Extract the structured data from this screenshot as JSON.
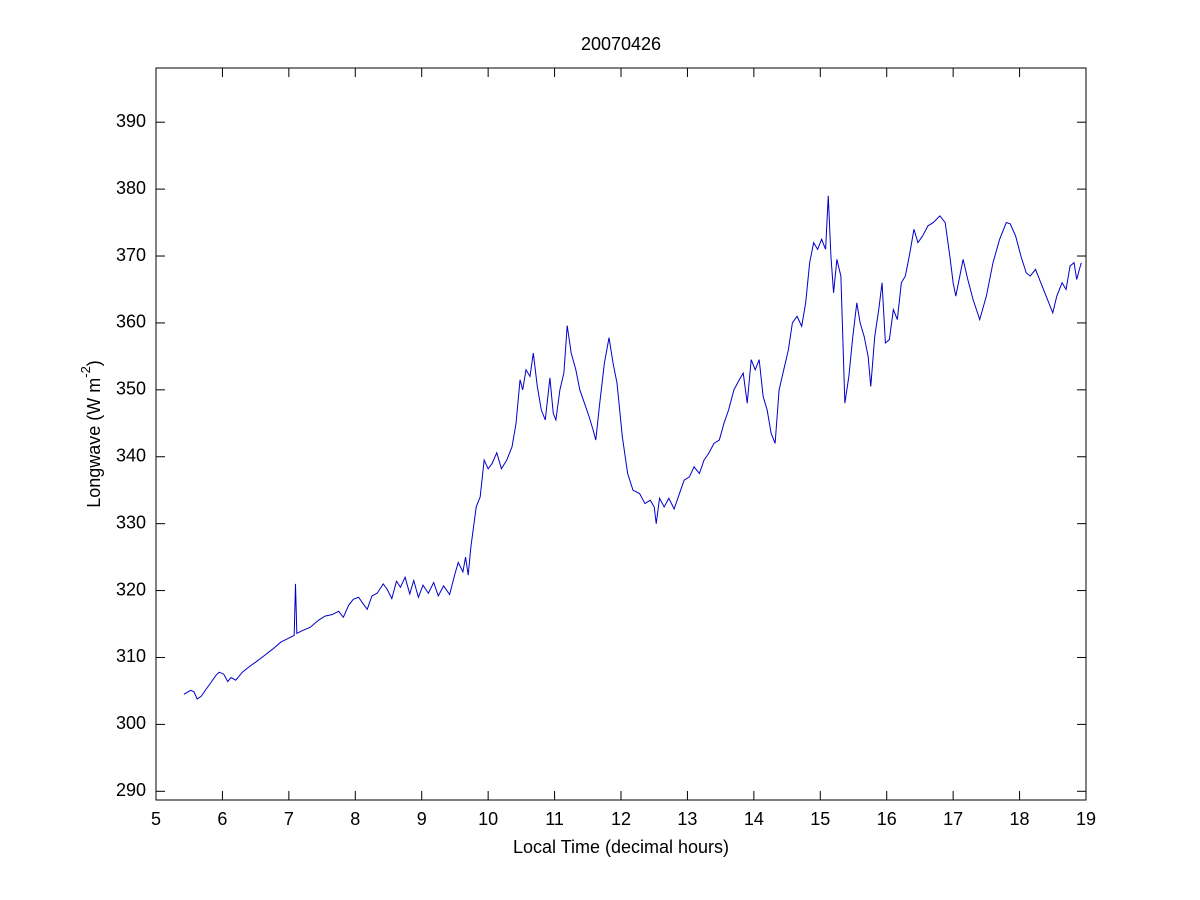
{
  "chart_data": {
    "type": "line",
    "title": "20070426",
    "xlabel": "Local Time (decimal hours)",
    "ylabel": [
      "Longwave (W m",
      "-2",
      ")"
    ],
    "xlim": [
      5,
      19
    ],
    "xticks": [
      5,
      6,
      7,
      8,
      9,
      10,
      11,
      12,
      13,
      14,
      15,
      16,
      17,
      18,
      19
    ],
    "ylim": [
      288.7,
      398.1
    ],
    "yticks": [
      290,
      300,
      310,
      320,
      330,
      340,
      350,
      360,
      370,
      380,
      390
    ],
    "x": [
      5.42,
      5.47,
      5.52,
      5.57,
      5.62,
      5.68,
      5.75,
      5.83,
      5.9,
      5.95,
      6.02,
      6.08,
      6.13,
      6.2,
      6.3,
      6.4,
      6.5,
      6.62,
      6.75,
      6.88,
      7.0,
      7.08,
      7.1,
      7.12,
      7.2,
      7.32,
      7.45,
      7.55,
      7.65,
      7.75,
      7.82,
      7.9,
      7.97,
      8.05,
      8.12,
      8.18,
      8.25,
      8.33,
      8.42,
      8.48,
      8.55,
      8.62,
      8.68,
      8.75,
      8.82,
      8.88,
      8.95,
      9.02,
      9.1,
      9.18,
      9.25,
      9.33,
      9.42,
      9.5,
      9.55,
      9.62,
      9.66,
      9.7,
      9.74,
      9.78,
      9.82,
      9.88,
      9.94,
      10.0,
      10.06,
      10.13,
      10.2,
      10.28,
      10.36,
      10.42,
      10.48,
      10.52,
      10.57,
      10.63,
      10.68,
      10.74,
      10.8,
      10.86,
      10.93,
      10.98,
      11.02,
      11.08,
      11.14,
      11.19,
      11.25,
      11.32,
      11.38,
      11.45,
      11.52,
      11.58,
      11.62,
      11.68,
      11.75,
      11.82,
      11.88,
      11.94,
      12.02,
      12.1,
      12.18,
      12.28,
      12.36,
      12.44,
      12.5,
      12.53,
      12.58,
      12.65,
      12.72,
      12.8,
      12.88,
      12.95,
      13.03,
      13.1,
      13.18,
      13.25,
      13.32,
      13.4,
      13.48,
      13.55,
      13.62,
      13.7,
      13.78,
      13.84,
      13.9,
      13.96,
      14.02,
      14.08,
      14.14,
      14.2,
      14.26,
      14.32,
      14.38,
      14.45,
      14.52,
      14.58,
      14.65,
      14.72,
      14.78,
      14.84,
      14.9,
      14.96,
      15.02,
      15.08,
      15.12,
      15.16,
      15.2,
      15.25,
      15.31,
      15.37,
      15.43,
      15.49,
      15.55,
      15.6,
      15.66,
      15.72,
      15.76,
      15.82,
      15.88,
      15.93,
      15.98,
      16.04,
      16.1,
      16.16,
      16.22,
      16.28,
      16.34,
      16.41,
      16.47,
      16.54,
      16.62,
      16.7,
      16.8,
      16.88,
      16.95,
      17.0,
      17.04,
      17.1,
      17.15,
      17.22,
      17.3,
      17.4,
      17.5,
      17.6,
      17.7,
      17.8,
      17.86,
      17.94,
      18.02,
      18.1,
      18.16,
      18.24,
      18.32,
      18.4,
      18.46,
      18.5,
      18.56,
      18.64,
      18.7,
      18.76,
      18.82,
      18.86,
      18.9,
      18.93
    ],
    "series": [
      {
        "color": "#0000c8",
        "values": [
          304.5,
          304.8,
          305.1,
          304.9,
          303.8,
          304.2,
          305.2,
          306.3,
          307.3,
          307.8,
          307.5,
          306.4,
          307,
          306.6,
          307.8,
          308.6,
          309.3,
          310.2,
          311.2,
          312.3,
          312.9,
          313.3,
          321,
          313.6,
          314,
          314.5,
          315.6,
          316.2,
          316.4,
          316.9,
          316,
          317.8,
          318.7,
          319,
          318,
          317.2,
          319.2,
          319.6,
          321,
          320.2,
          318.8,
          321.4,
          320.5,
          322,
          319.5,
          321.5,
          319,
          320.8,
          319.6,
          321.2,
          319.2,
          320.7,
          319.4,
          322.5,
          324.2,
          322.8,
          325,
          322.3,
          326.5,
          329.5,
          332.5,
          334,
          339.5,
          338.2,
          339,
          340.6,
          338.2,
          339.5,
          341.5,
          345,
          351.5,
          350,
          353,
          352,
          355.5,
          350.5,
          347,
          345.5,
          351.8,
          346.5,
          345.5,
          350,
          352.5,
          359.6,
          355.5,
          353,
          350,
          348,
          346,
          344,
          342.5,
          348,
          354,
          357.8,
          354,
          351,
          343,
          337.5,
          335,
          334.5,
          333,
          333.5,
          332.5,
          330,
          333.8,
          332.5,
          333.8,
          332.2,
          334.5,
          336.5,
          337,
          338.5,
          337.5,
          339.5,
          340.5,
          342,
          342.5,
          345,
          347,
          350,
          351.5,
          352.5,
          348,
          354.5,
          353,
          354.5,
          349,
          347,
          343.5,
          342,
          350,
          353,
          356,
          360,
          361,
          359.5,
          363,
          369,
          372,
          371,
          372.5,
          371,
          379,
          370,
          364.5,
          369.5,
          367,
          348,
          352,
          358,
          363,
          360,
          358,
          355,
          350.5,
          358,
          362,
          366,
          357,
          357.5,
          362,
          360.5,
          366,
          367,
          370,
          374,
          372,
          373,
          374.5,
          375,
          376,
          375,
          370,
          366,
          364,
          367,
          369.5,
          366.5,
          363.5,
          360.5,
          364,
          369,
          372.5,
          375,
          374.8,
          373,
          370,
          367.5,
          367,
          368,
          366,
          364,
          362.5,
          361.5,
          364,
          366,
          365,
          368.5,
          369,
          366.5,
          368,
          369
        ]
      }
    ]
  }
}
